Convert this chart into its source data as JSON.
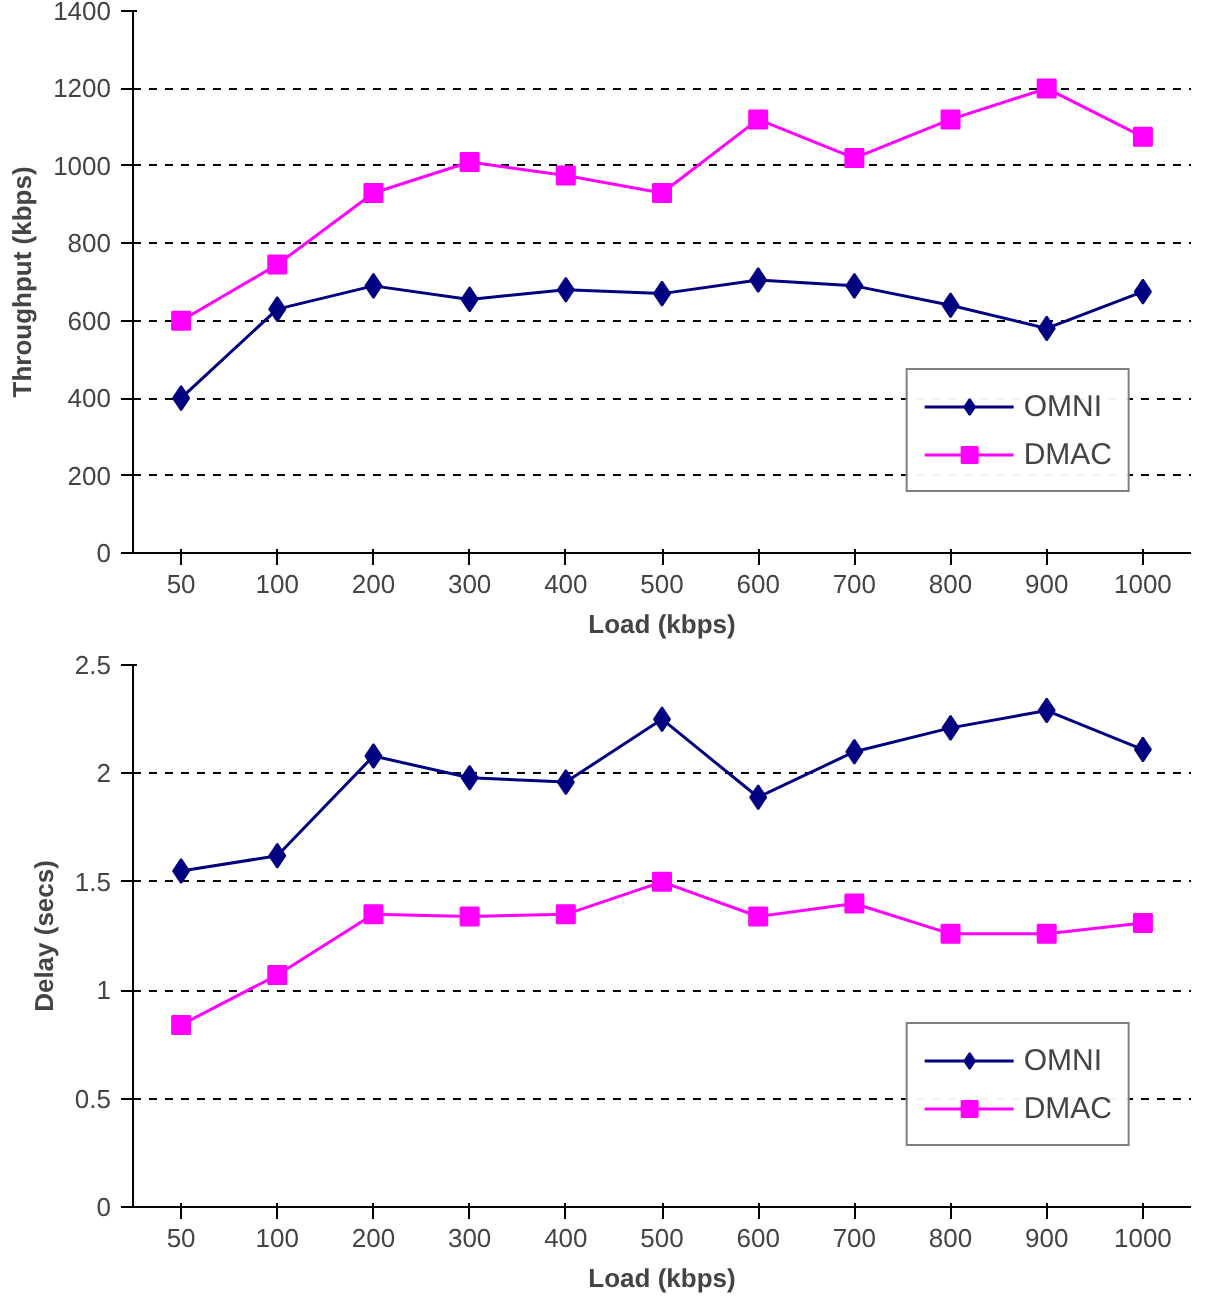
{
  "chart_data": [
    {
      "type": "line",
      "xlabel": "Load (kbps)",
      "ylabel": "Throughput (kbps)",
      "categories": [
        "50",
        "100",
        "200",
        "300",
        "400",
        "500",
        "600",
        "700",
        "800",
        "900",
        "1000"
      ],
      "ylim": [
        0,
        1400
      ],
      "yticks": [
        0,
        200,
        400,
        600,
        800,
        1000,
        1200,
        1400
      ],
      "grid": "y",
      "legend": "bottom right",
      "line_style": "solid",
      "series": [
        {
          "name": "OMNI",
          "color": "#000080",
          "marker": "diamond",
          "values": [
            400,
            630,
            690,
            655,
            680,
            670,
            705,
            690,
            640,
            580,
            675
          ]
        },
        {
          "name": "DMAC",
          "color": "#ff00ff",
          "marker": "square",
          "values": [
            600,
            745,
            930,
            1010,
            975,
            930,
            1120,
            1020,
            1120,
            1200,
            1075
          ]
        }
      ]
    },
    {
      "type": "line",
      "xlabel": "Load (kbps)",
      "ylabel": "Delay (secs)",
      "categories": [
        "50",
        "100",
        "200",
        "300",
        "400",
        "500",
        "600",
        "700",
        "800",
        "900",
        "1000"
      ],
      "ylim": [
        0,
        2.5
      ],
      "yticks": [
        0,
        {
          "value": 0.5,
          "label": "0.5"
        },
        1,
        {
          "value": 1.5,
          "label": "1.5"
        },
        2,
        {
          "value": 2.5,
          "label": "2.5"
        }
      ],
      "grid": "y",
      "legend": "bottom right",
      "line_style": "solid",
      "series": [
        {
          "name": "OMNI",
          "color": "#000080",
          "marker": "diamond",
          "values": [
            1.55,
            1.62,
            2.08,
            1.98,
            1.96,
            2.25,
            1.89,
            2.1,
            2.21,
            2.29,
            2.11
          ]
        },
        {
          "name": "DMAC",
          "color": "#ff00ff",
          "marker": "square",
          "values": [
            0.84,
            1.07,
            1.35,
            1.34,
            1.35,
            1.5,
            1.34,
            1.4,
            1.26,
            1.26,
            1.31
          ]
        }
      ]
    }
  ]
}
